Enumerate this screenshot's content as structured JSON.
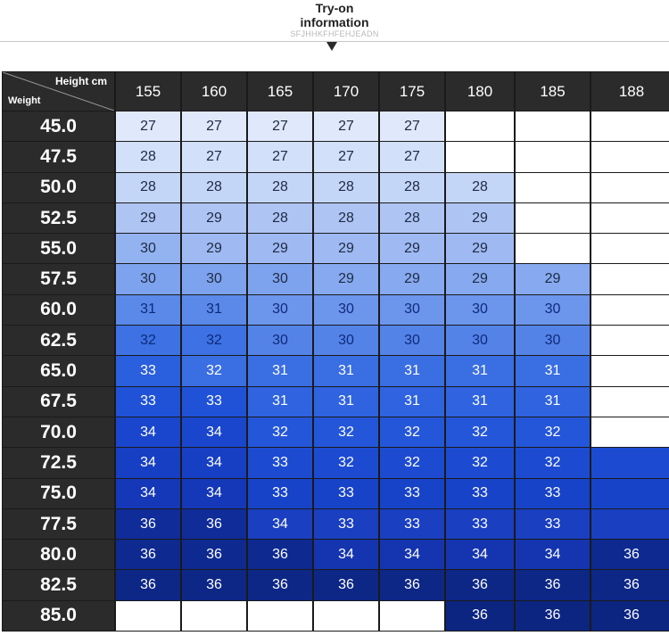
{
  "header": {
    "title_line1": "Try-on",
    "title_line2": "information",
    "subtitle": "SFJHHKFHFEHJEADN"
  },
  "table": {
    "corner_height_label": "Height cm",
    "corner_weight_label": "Weight",
    "heights": [
      "155",
      "160",
      "165",
      "170",
      "175",
      "180",
      "185",
      "188"
    ],
    "rows": [
      {
        "weight": "45.0",
        "sizes": [
          "27",
          "27",
          "27",
          "27",
          "27",
          "",
          "",
          ""
        ]
      },
      {
        "weight": "47.5",
        "sizes": [
          "28",
          "27",
          "27",
          "27",
          "27",
          "",
          "",
          ""
        ]
      },
      {
        "weight": "50.0",
        "sizes": [
          "28",
          "28",
          "28",
          "28",
          "28",
          "28",
          "",
          ""
        ]
      },
      {
        "weight": "52.5",
        "sizes": [
          "29",
          "29",
          "28",
          "28",
          "28",
          "29",
          "",
          ""
        ]
      },
      {
        "weight": "55.0",
        "sizes": [
          "30",
          "29",
          "29",
          "29",
          "29",
          "29",
          "",
          ""
        ]
      },
      {
        "weight": "57.5",
        "sizes": [
          "30",
          "30",
          "30",
          "29",
          "29",
          "29",
          "29",
          ""
        ]
      },
      {
        "weight": "60.0",
        "sizes": [
          "31",
          "31",
          "30",
          "30",
          "30",
          "30",
          "30",
          ""
        ]
      },
      {
        "weight": "62.5",
        "sizes": [
          "32",
          "32",
          "30",
          "30",
          "30",
          "30",
          "30",
          ""
        ]
      },
      {
        "weight": "65.0",
        "sizes": [
          "33",
          "32",
          "31",
          "31",
          "31",
          "31",
          "31",
          ""
        ]
      },
      {
        "weight": "67.5",
        "sizes": [
          "33",
          "33",
          "31",
          "31",
          "31",
          "31",
          "31",
          ""
        ]
      },
      {
        "weight": "70.0",
        "sizes": [
          "34",
          "34",
          "32",
          "32",
          "32",
          "32",
          "32",
          ""
        ]
      },
      {
        "weight": "72.5",
        "sizes": [
          "34",
          "34",
          "33",
          "32",
          "32",
          "32",
          "32",
          ""
        ]
      },
      {
        "weight": "75.0",
        "sizes": [
          "34",
          "34",
          "33",
          "33",
          "33",
          "33",
          "33",
          ""
        ]
      },
      {
        "weight": "77.5",
        "sizes": [
          "36",
          "36",
          "34",
          "33",
          "33",
          "33",
          "33",
          ""
        ]
      },
      {
        "weight": "80.0",
        "sizes": [
          "36",
          "36",
          "36",
          "34",
          "34",
          "34",
          "34",
          "36"
        ]
      },
      {
        "weight": "82.5",
        "sizes": [
          "36",
          "36",
          "36",
          "36",
          "36",
          "36",
          "36",
          "36"
        ]
      },
      {
        "weight": "85.0",
        "sizes": [
          "",
          "",
          "",
          "",
          "",
          "36",
          "36",
          "36"
        ]
      }
    ],
    "cell_colors": [
      [
        "#dfe9fb",
        "#dfe9fb",
        "#dfe9fb",
        "#dfe9fb",
        "#dfe9fb",
        "#ffffff",
        "#ffffff",
        "#ffffff"
      ],
      [
        "#d2e0fa",
        "#d2e0fa",
        "#d2e0fa",
        "#d2e0fa",
        "#d2e0fa",
        "#ffffff",
        "#ffffff",
        "#ffffff"
      ],
      [
        "#c4d6f8",
        "#c4d6f8",
        "#c4d6f8",
        "#c4d6f8",
        "#c4d6f8",
        "#c4d6f8",
        "#ffffff",
        "#ffffff"
      ],
      [
        "#aec5f4",
        "#aec5f4",
        "#aec5f4",
        "#aec5f4",
        "#aec5f4",
        "#aec5f4",
        "#ffffff",
        "#ffffff"
      ],
      [
        "#93b3f0",
        "#9fbaf2",
        "#9fbaf2",
        "#9fbaf2",
        "#9fbaf2",
        "#9fbaf2",
        "#ffffff",
        "#ffffff"
      ],
      [
        "#7ea3ee",
        "#7ea3ee",
        "#7ea3ee",
        "#86a9ef",
        "#86a9ef",
        "#86a9ef",
        "#86a9ef",
        "#ffffff"
      ],
      [
        "#5a89ea",
        "#5a89ea",
        "#6c95ec",
        "#6c95ec",
        "#6c95ec",
        "#6c95ec",
        "#6c95ec",
        "#ffffff"
      ],
      [
        "#3d71e4",
        "#3d71e4",
        "#5483e8",
        "#5483e8",
        "#5483e8",
        "#5483e8",
        "#5483e8",
        "#ffffff"
      ],
      [
        "#2a5fdd",
        "#3a6ee3",
        "#3a6ee3",
        "#3a6ee3",
        "#3a6ee3",
        "#3a6ee3",
        "#3a6ee3",
        "#ffffff"
      ],
      [
        "#2052d8",
        "#2052d8",
        "#2f63df",
        "#2f63df",
        "#2f63df",
        "#2f63df",
        "#2f63df",
        "#ffffff"
      ],
      [
        "#1a46cd",
        "#1a46cd",
        "#2456d9",
        "#2456d9",
        "#2456d9",
        "#2456d9",
        "#2456d9",
        "#ffffff"
      ],
      [
        "#173fc4",
        "#173fc4",
        "#1c4bd2",
        "#1c4bd2",
        "#1c4bd2",
        "#1c4bd2",
        "#1c4bd2",
        "#1c4bd2"
      ],
      [
        "#1538b9",
        "#1538b9",
        "#1743c9",
        "#1743c9",
        "#1743c9",
        "#1743c9",
        "#1743c9",
        "#1743c9"
      ],
      [
        "#0f2c99",
        "#0f2c99",
        "#1a3fc0",
        "#1a3fc0",
        "#1a3fc0",
        "#1a3fc0",
        "#1a3fc0",
        "#1a3fc0"
      ],
      [
        "#0e2a90",
        "#0e2a90",
        "#0e2a90",
        "#1535b0",
        "#1535b0",
        "#1535b0",
        "#1535b0",
        "#0e2a90"
      ],
      [
        "#0d2786",
        "#0d2786",
        "#0d2786",
        "#0d2786",
        "#0d2786",
        "#0d2786",
        "#0d2786",
        "#0d2786"
      ],
      [
        "#ffffff",
        "#ffffff",
        "#ffffff",
        "#ffffff",
        "#ffffff",
        "#0c2580",
        "#0c2580",
        "#0c2580"
      ]
    ]
  }
}
